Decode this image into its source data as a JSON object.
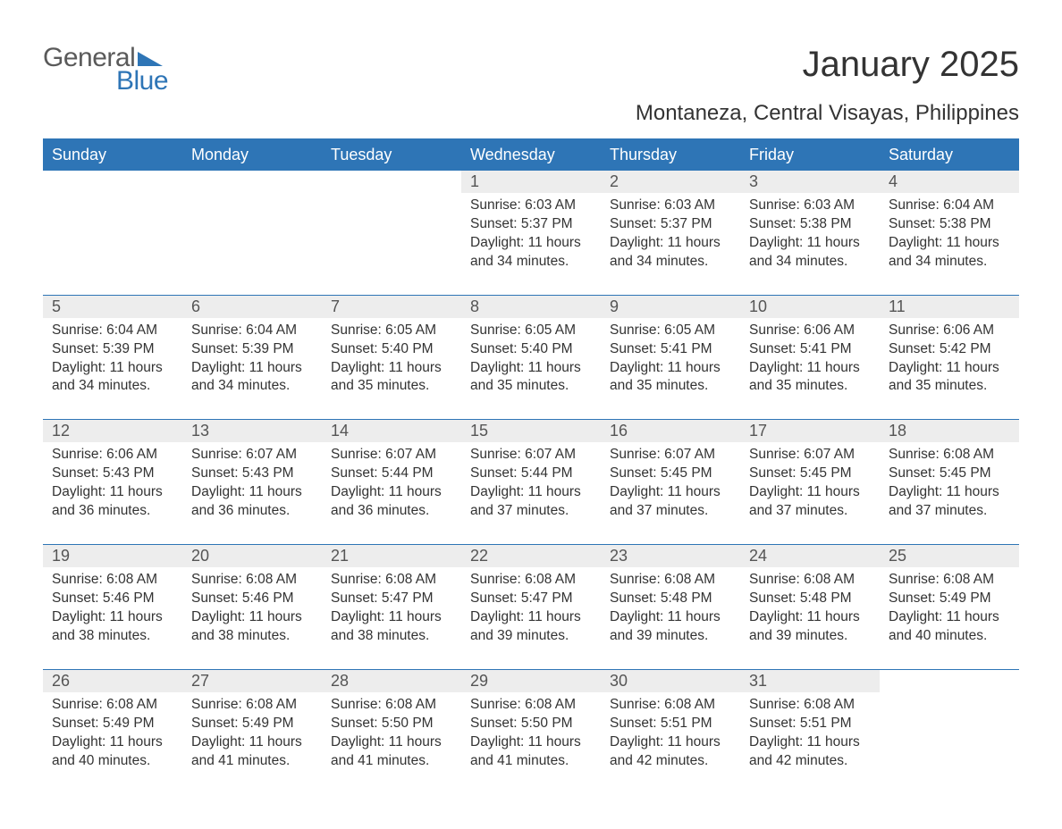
{
  "logo": {
    "general": "General",
    "blue": "Blue"
  },
  "title": "January 2025",
  "location": "Montaneza, Central Visayas, Philippines",
  "colors": {
    "header_bg": "#2e75b6",
    "header_text": "#ffffff",
    "daynum_bg": "#ededed",
    "text": "#333333",
    "rule": "#2e75b6",
    "page_bg": "#ffffff"
  },
  "columns": [
    "Sunday",
    "Monday",
    "Tuesday",
    "Wednesday",
    "Thursday",
    "Friday",
    "Saturday"
  ],
  "weeks": [
    [
      null,
      null,
      null,
      {
        "n": "1",
        "sr": "6:03 AM",
        "ss": "5:37 PM",
        "dl": "11 hours and 34 minutes."
      },
      {
        "n": "2",
        "sr": "6:03 AM",
        "ss": "5:37 PM",
        "dl": "11 hours and 34 minutes."
      },
      {
        "n": "3",
        "sr": "6:03 AM",
        "ss": "5:38 PM",
        "dl": "11 hours and 34 minutes."
      },
      {
        "n": "4",
        "sr": "6:04 AM",
        "ss": "5:38 PM",
        "dl": "11 hours and 34 minutes."
      }
    ],
    [
      {
        "n": "5",
        "sr": "6:04 AM",
        "ss": "5:39 PM",
        "dl": "11 hours and 34 minutes."
      },
      {
        "n": "6",
        "sr": "6:04 AM",
        "ss": "5:39 PM",
        "dl": "11 hours and 34 minutes."
      },
      {
        "n": "7",
        "sr": "6:05 AM",
        "ss": "5:40 PM",
        "dl": "11 hours and 35 minutes."
      },
      {
        "n": "8",
        "sr": "6:05 AM",
        "ss": "5:40 PM",
        "dl": "11 hours and 35 minutes."
      },
      {
        "n": "9",
        "sr": "6:05 AM",
        "ss": "5:41 PM",
        "dl": "11 hours and 35 minutes."
      },
      {
        "n": "10",
        "sr": "6:06 AM",
        "ss": "5:41 PM",
        "dl": "11 hours and 35 minutes."
      },
      {
        "n": "11",
        "sr": "6:06 AM",
        "ss": "5:42 PM",
        "dl": "11 hours and 35 minutes."
      }
    ],
    [
      {
        "n": "12",
        "sr": "6:06 AM",
        "ss": "5:43 PM",
        "dl": "11 hours and 36 minutes."
      },
      {
        "n": "13",
        "sr": "6:07 AM",
        "ss": "5:43 PM",
        "dl": "11 hours and 36 minutes."
      },
      {
        "n": "14",
        "sr": "6:07 AM",
        "ss": "5:44 PM",
        "dl": "11 hours and 36 minutes."
      },
      {
        "n": "15",
        "sr": "6:07 AM",
        "ss": "5:44 PM",
        "dl": "11 hours and 37 minutes."
      },
      {
        "n": "16",
        "sr": "6:07 AM",
        "ss": "5:45 PM",
        "dl": "11 hours and 37 minutes."
      },
      {
        "n": "17",
        "sr": "6:07 AM",
        "ss": "5:45 PM",
        "dl": "11 hours and 37 minutes."
      },
      {
        "n": "18",
        "sr": "6:08 AM",
        "ss": "5:45 PM",
        "dl": "11 hours and 37 minutes."
      }
    ],
    [
      {
        "n": "19",
        "sr": "6:08 AM",
        "ss": "5:46 PM",
        "dl": "11 hours and 38 minutes."
      },
      {
        "n": "20",
        "sr": "6:08 AM",
        "ss": "5:46 PM",
        "dl": "11 hours and 38 minutes."
      },
      {
        "n": "21",
        "sr": "6:08 AM",
        "ss": "5:47 PM",
        "dl": "11 hours and 38 minutes."
      },
      {
        "n": "22",
        "sr": "6:08 AM",
        "ss": "5:47 PM",
        "dl": "11 hours and 39 minutes."
      },
      {
        "n": "23",
        "sr": "6:08 AM",
        "ss": "5:48 PM",
        "dl": "11 hours and 39 minutes."
      },
      {
        "n": "24",
        "sr": "6:08 AM",
        "ss": "5:48 PM",
        "dl": "11 hours and 39 minutes."
      },
      {
        "n": "25",
        "sr": "6:08 AM",
        "ss": "5:49 PM",
        "dl": "11 hours and 40 minutes."
      }
    ],
    [
      {
        "n": "26",
        "sr": "6:08 AM",
        "ss": "5:49 PM",
        "dl": "11 hours and 40 minutes."
      },
      {
        "n": "27",
        "sr": "6:08 AM",
        "ss": "5:49 PM",
        "dl": "11 hours and 41 minutes."
      },
      {
        "n": "28",
        "sr": "6:08 AM",
        "ss": "5:50 PM",
        "dl": "11 hours and 41 minutes."
      },
      {
        "n": "29",
        "sr": "6:08 AM",
        "ss": "5:50 PM",
        "dl": "11 hours and 41 minutes."
      },
      {
        "n": "30",
        "sr": "6:08 AM",
        "ss": "5:51 PM",
        "dl": "11 hours and 42 minutes."
      },
      {
        "n": "31",
        "sr": "6:08 AM",
        "ss": "5:51 PM",
        "dl": "11 hours and 42 minutes."
      },
      null
    ]
  ],
  "labels": {
    "sunrise": "Sunrise:",
    "sunset": "Sunset:",
    "daylight": "Daylight:"
  }
}
